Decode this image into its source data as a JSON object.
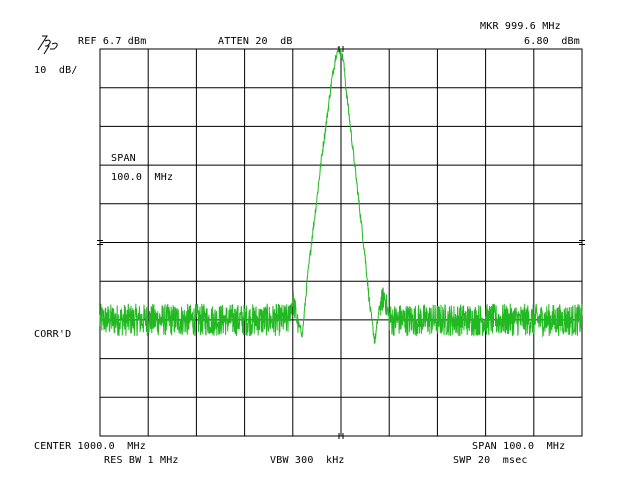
{
  "header": {
    "logo": "hp",
    "ref_level": "REF 6.7 dBm",
    "attenuation": "ATTEN 20  dB",
    "marker_freq": "MKR 999.6 MHz",
    "marker_level": "6.80  dBm",
    "scale": "10  dB/"
  },
  "annotations": {
    "span_label": "SPAN",
    "span_value": "100.0  MHz",
    "corr": "CORR'D"
  },
  "footer": {
    "center": "CENTER 1000.0  MHz",
    "span": "SPAN 100.0  MHz",
    "res_bw": "RES BW 1 MHz",
    "vbw": "VBW 300  kHz",
    "sweep": "SWP 20  msec"
  },
  "chart_data": {
    "type": "line",
    "center_mhz": 1000.0,
    "span_mhz": 100.0,
    "ref_level_dbm": 6.7,
    "scale_db_per_div": 10,
    "divisions_x": 10,
    "divisions_y": 10,
    "marker": {
      "freq_mhz": 999.6,
      "level_dbm": 6.8
    },
    "trace_color": "#22b822",
    "series": [
      {
        "x_mhz": [
          950,
          989,
          990,
          991,
          992,
          993,
          994,
          995,
          996,
          997,
          998,
          999,
          999.6,
          1000.5,
          1001,
          1002,
          1003,
          1004,
          1005,
          1006,
          1007,
          1008,
          1009,
          1010,
          1050
        ],
        "level_dbm": [
          -63.3,
          -63.3,
          -58,
          -64,
          -67,
          -53,
          -42,
          -32,
          -21,
          -12,
          -2,
          5.5,
          6.8,
          4,
          -3,
          -14,
          -25,
          -36,
          -47,
          -60,
          -69,
          -60,
          -57,
          -63.3,
          -63.3
        ]
      }
    ],
    "noise_floor_dbm": -63.3,
    "grid": true
  },
  "colors": {
    "background": "#ffffff",
    "grid": "#000000",
    "trace": "#22b822",
    "text": "#000000"
  }
}
